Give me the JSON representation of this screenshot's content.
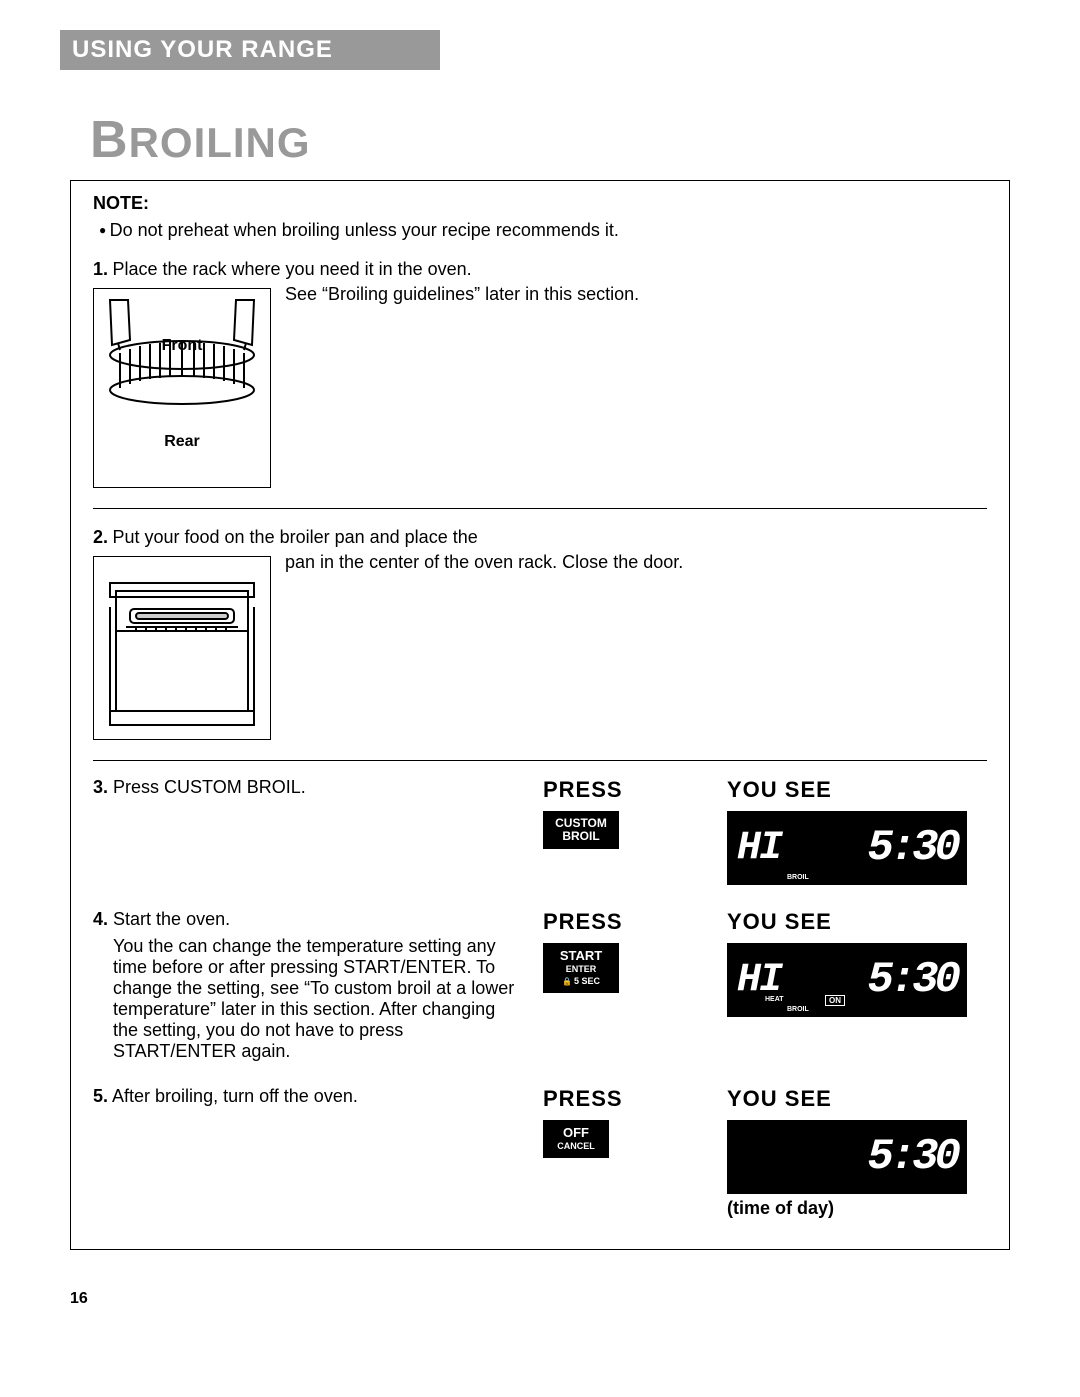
{
  "header": {
    "section": "USING YOUR RANGE",
    "title": "BROILING"
  },
  "note": {
    "label": "NOTE:",
    "text": "Do not preheat when broiling unless your recipe recommends it."
  },
  "steps": {
    "s1": {
      "num": "1.",
      "text": "Place the rack where you need it in the oven.",
      "after": "See “Broiling guidelines” later in this section.",
      "fig": {
        "front": "Front",
        "rear": "Rear"
      }
    },
    "s2": {
      "num": "2.",
      "text": "Put your food on the broiler pan and place the",
      "after": "pan in the center of the oven rack. Close the door."
    },
    "s3": {
      "num": "3.",
      "text": "Press CUSTOM BROIL.",
      "press_label": "PRESS",
      "yousee_label": "YOU SEE",
      "button": {
        "line1": "CUSTOM",
        "line2": "BROIL"
      },
      "display": {
        "hi": "HI",
        "time": "5:30",
        "broil": "BROIL"
      }
    },
    "s4": {
      "num": "4.",
      "text": "Start the oven.",
      "detail": "You the can change the temperature setting any time before or after pressing START/ENTER. To change the setting, see “To custom broil at a lower temperature” later in this section. After changing the setting, you do not have to press START/ENTER again.",
      "press_label": "PRESS",
      "yousee_label": "YOU SEE",
      "button": {
        "line1": "START",
        "line2": "ENTER",
        "line3": "5 SEC"
      },
      "display": {
        "hi": "HI",
        "time": "5:30",
        "heat": "HEAT",
        "on": "ON",
        "broil": "BROIL"
      }
    },
    "s5": {
      "num": "5.",
      "text": "After broiling, turn off the oven.",
      "press_label": "PRESS",
      "yousee_label": "YOU SEE",
      "button": {
        "line1": "OFF",
        "line2": "CANCEL"
      },
      "display": {
        "time": "5:30"
      },
      "caption": "(time of day)"
    }
  },
  "pagenum": "16",
  "colors": {
    "header_bg": "#999999",
    "title_color": "#999999",
    "panel_bg": "#000000",
    "panel_fg": "#ffffff"
  }
}
